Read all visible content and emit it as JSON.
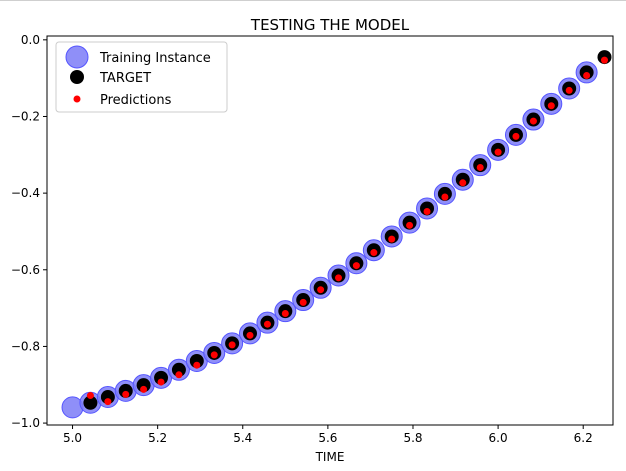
{
  "chart_data": {
    "type": "scatter",
    "title": "TESTING THE MODEL",
    "xlabel": "TIME",
    "ylabel": "",
    "xlim": [
      4.94,
      6.27
    ],
    "ylim": [
      -1.005,
      0.01
    ],
    "xticks": [
      5.0,
      5.2,
      5.4,
      5.6,
      5.8,
      6.0,
      6.2
    ],
    "xtick_labels": [
      "5.0",
      "5.2",
      "5.4",
      "5.6",
      "5.8",
      "6.0",
      "6.2"
    ],
    "yticks": [
      0.0,
      -0.2,
      -0.4,
      -0.6,
      -0.8,
      -1.0
    ],
    "ytick_labels": [
      "0.0",
      "−0.2",
      "−0.4",
      "−0.6",
      "−0.8",
      "−1.0"
    ],
    "grid": false,
    "legend": {
      "placement": "top-left"
    },
    "series": [
      {
        "name": "Training Instance",
        "marker": "large-circle",
        "color": "#7b7bf7",
        "points": [
          [
            5.0,
            -0.959
          ],
          [
            5.042,
            -0.947
          ],
          [
            5.083,
            -0.932
          ],
          [
            5.125,
            -0.916
          ],
          [
            5.167,
            -0.901
          ],
          [
            5.208,
            -0.882
          ],
          [
            5.25,
            -0.861
          ],
          [
            5.292,
            -0.838
          ],
          [
            5.333,
            -0.817
          ],
          [
            5.375,
            -0.792
          ],
          [
            5.417,
            -0.766
          ],
          [
            5.458,
            -0.738
          ],
          [
            5.5,
            -0.708
          ],
          [
            5.542,
            -0.679
          ],
          [
            5.583,
            -0.647
          ],
          [
            5.625,
            -0.615
          ],
          [
            5.667,
            -0.583
          ],
          [
            5.708,
            -0.549
          ],
          [
            5.75,
            -0.513
          ],
          [
            5.792,
            -0.477
          ],
          [
            5.833,
            -0.44
          ],
          [
            5.875,
            -0.402
          ],
          [
            5.917,
            -0.365
          ],
          [
            5.958,
            -0.327
          ],
          [
            6.0,
            -0.287
          ],
          [
            6.042,
            -0.248
          ],
          [
            6.083,
            -0.208
          ],
          [
            6.125,
            -0.167
          ],
          [
            6.167,
            -0.127
          ],
          [
            6.208,
            -0.085
          ]
        ]
      },
      {
        "name": "TARGET",
        "marker": "circle",
        "color": "#000000",
        "points": [
          [
            5.042,
            -0.947
          ],
          [
            5.083,
            -0.932
          ],
          [
            5.125,
            -0.916
          ],
          [
            5.167,
            -0.901
          ],
          [
            5.208,
            -0.882
          ],
          [
            5.25,
            -0.861
          ],
          [
            5.292,
            -0.838
          ],
          [
            5.333,
            -0.817
          ],
          [
            5.375,
            -0.792
          ],
          [
            5.417,
            -0.766
          ],
          [
            5.458,
            -0.738
          ],
          [
            5.5,
            -0.708
          ],
          [
            5.542,
            -0.679
          ],
          [
            5.583,
            -0.647
          ],
          [
            5.625,
            -0.615
          ],
          [
            5.667,
            -0.583
          ],
          [
            5.708,
            -0.549
          ],
          [
            5.75,
            -0.513
          ],
          [
            5.792,
            -0.477
          ],
          [
            5.833,
            -0.44
          ],
          [
            5.875,
            -0.402
          ],
          [
            5.917,
            -0.365
          ],
          [
            5.958,
            -0.327
          ],
          [
            6.0,
            -0.287
          ],
          [
            6.042,
            -0.248
          ],
          [
            6.083,
            -0.208
          ],
          [
            6.125,
            -0.167
          ],
          [
            6.167,
            -0.127
          ],
          [
            6.208,
            -0.085
          ],
          [
            6.25,
            -0.045
          ]
        ]
      },
      {
        "name": "Predictions",
        "marker": "small-dot",
        "color": "#ff0000",
        "points": [
          [
            5.042,
            -0.928
          ],
          [
            5.083,
            -0.944
          ],
          [
            5.125,
            -0.925
          ],
          [
            5.167,
            -0.912
          ],
          [
            5.208,
            -0.893
          ],
          [
            5.25,
            -0.874
          ],
          [
            5.292,
            -0.849
          ],
          [
            5.333,
            -0.822
          ],
          [
            5.375,
            -0.796
          ],
          [
            5.417,
            -0.771
          ],
          [
            5.458,
            -0.742
          ],
          [
            5.5,
            -0.714
          ],
          [
            5.542,
            -0.685
          ],
          [
            5.583,
            -0.652
          ],
          [
            5.625,
            -0.621
          ],
          [
            5.667,
            -0.589
          ],
          [
            5.708,
            -0.555
          ],
          [
            5.75,
            -0.52
          ],
          [
            5.792,
            -0.484
          ],
          [
            5.833,
            -0.448
          ],
          [
            5.875,
            -0.41
          ],
          [
            5.917,
            -0.373
          ],
          [
            5.958,
            -0.333
          ],
          [
            6.0,
            -0.293
          ],
          [
            6.042,
            -0.252
          ],
          [
            6.083,
            -0.212
          ],
          [
            6.125,
            -0.172
          ],
          [
            6.167,
            -0.132
          ],
          [
            6.208,
            -0.093
          ],
          [
            6.25,
            -0.053
          ]
        ]
      }
    ]
  }
}
